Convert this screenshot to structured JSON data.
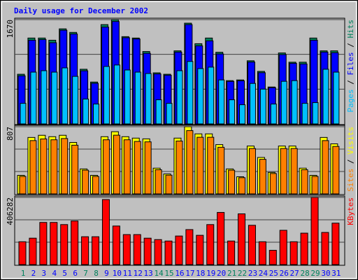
{
  "chart_data": [
    {
      "type": "bar",
      "title": "Daily usage for December 2002",
      "legend_separator": " / ",
      "ylim": [
        0,
        1670
      ],
      "yticks": [
        1670
      ],
      "grid": true,
      "series": [
        {
          "name": "Hits",
          "color": "#00805c",
          "values": [
            795,
            1375,
            1375,
            1340,
            1522,
            1465,
            875,
            670,
            1590,
            1670,
            1397,
            1375,
            1159,
            818,
            795,
            1170,
            1613,
            1284,
            1375,
            1147,
            693,
            704,
            1011,
            841,
            591,
            1136,
            988,
            988,
            1375,
            1170,
            1170
          ]
        },
        {
          "name": "Files",
          "color": "#0000ff",
          "values": [
            770,
            1340,
            1350,
            1300,
            1500,
            1440,
            850,
            650,
            1550,
            1640,
            1380,
            1360,
            1130,
            800,
            780,
            1150,
            1590,
            1250,
            1330,
            1120,
            680,
            690,
            990,
            820,
            580,
            1110,
            970,
            960,
            1340,
            1150,
            1140
          ]
        },
        {
          "name": "Pages",
          "color": "#00c0ff",
          "values": [
            329,
            829,
            852,
            829,
            897,
            761,
            398,
            318,
            920,
            943,
            863,
            829,
            807,
            386,
            329,
            852,
            1000,
            886,
            909,
            704,
            386,
            307,
            648,
            557,
            318,
            682,
            693,
            329,
            341,
            875,
            829
          ]
        }
      ]
    },
    {
      "type": "bar",
      "legend_separator": " / ",
      "ylim": [
        0,
        807
      ],
      "yticks": [
        807
      ],
      "grid": true,
      "series": [
        {
          "name": "Visits",
          "color": "#ffff00",
          "values": [
            223,
            678,
            704,
            687,
            704,
            618,
            300,
            223,
            687,
            747,
            687,
            670,
            661,
            309,
            240,
            670,
            807,
            721,
            721,
            592,
            300,
            206,
            575,
            438,
            258,
            575,
            575,
            309,
            223,
            678,
            601
          ]
        },
        {
          "name": "Sites",
          "color": "#ff8000",
          "values": [
            210,
            640,
            660,
            650,
            665,
            585,
            285,
            210,
            650,
            705,
            650,
            630,
            625,
            290,
            225,
            635,
            760,
            680,
            680,
            560,
            285,
            195,
            545,
            415,
            245,
            545,
            545,
            290,
            210,
            640,
            570
          ]
        }
      ]
    },
    {
      "type": "bar",
      "ylim": [
        0,
        406282
      ],
      "yticks": [
        406282
      ],
      "grid": true,
      "categories": [
        "1",
        "2",
        "3",
        "4",
        "5",
        "6",
        "7",
        "8",
        "9",
        "10",
        "11",
        "12",
        "13",
        "14",
        "15",
        "16",
        "17",
        "18",
        "19",
        "20",
        "21",
        "22",
        "23",
        "24",
        "25",
        "26",
        "27",
        "28",
        "29",
        "30",
        "31"
      ],
      "category_colors": [
        "#00805c",
        "#0000ff",
        "#0000ff",
        "#0000ff",
        "#0000ff",
        "#0000ff",
        "#00805c",
        "#00805c",
        "#0000ff",
        "#0000ff",
        "#0000ff",
        "#0000ff",
        "#0000ff",
        "#00805c",
        "#00805c",
        "#0000ff",
        "#0000ff",
        "#0000ff",
        "#0000ff",
        "#0000ff",
        "#00805c",
        "#00805c",
        "#0000ff",
        "#0000ff",
        "#0000ff",
        "#0000ff",
        "#0000ff",
        "#00805c",
        "#00805c",
        "#0000ff",
        "#0000ff"
      ],
      "series": [
        {
          "name": "KBytes",
          "color": "#ff0000",
          "values": [
            138304,
            159914,
            255000,
            255000,
            242032,
            263642,
            168558,
            168558,
            393302,
            233388,
            181524,
            181524,
            159914,
            151270,
            142626,
            172880,
            211778,
            177202,
            242032,
            315506,
            142626,
            306862,
            237710,
            138304,
            86440,
            207456,
            138304,
            190168,
            406282,
            194490,
            250676
          ]
        }
      ]
    }
  ]
}
